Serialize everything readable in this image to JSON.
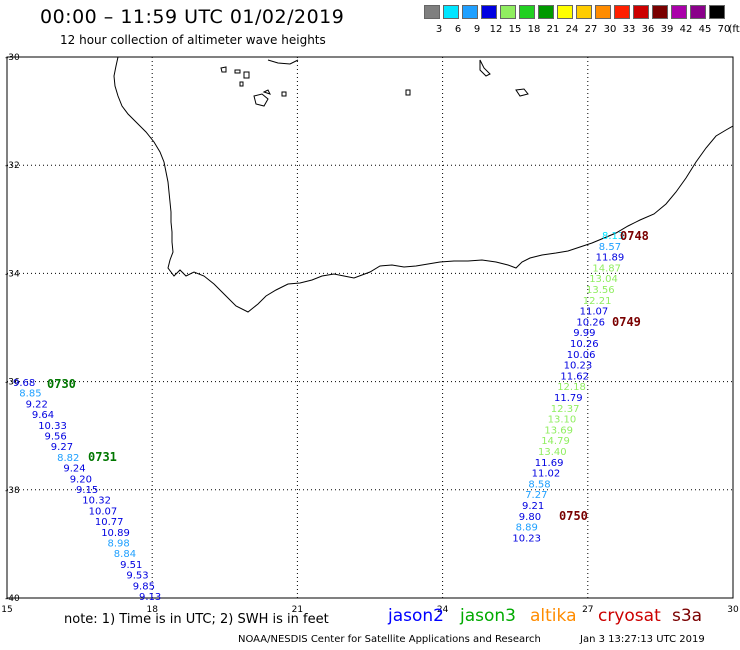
{
  "header": {
    "title": "00:00 – 11:59 UTC 01/02/2019",
    "subtitle": "12 hour collection of altimeter wave heights"
  },
  "legend": {
    "unit": "(ft)",
    "bins": [
      {
        "label": "3",
        "color": "#7f7f7f"
      },
      {
        "label": "6",
        "color": "#00e5ff"
      },
      {
        "label": "9",
        "color": "#1fa0ff"
      },
      {
        "label": "12",
        "color": "#0000e0"
      },
      {
        "label": "15",
        "color": "#90ee60"
      },
      {
        "label": "18",
        "color": "#22d022"
      },
      {
        "label": "21",
        "color": "#009900"
      },
      {
        "label": "24",
        "color": "#ffff00"
      },
      {
        "label": "27",
        "color": "#ffcc00"
      },
      {
        "label": "30",
        "color": "#ff8c00"
      },
      {
        "label": "33",
        "color": "#ff2000"
      },
      {
        "label": "36",
        "color": "#cc0000"
      },
      {
        "label": "39",
        "color": "#7a0000"
      },
      {
        "label": "42",
        "color": "#aa00aa"
      },
      {
        "label": "45",
        "color": "#8a008a"
      },
      {
        "label": "70",
        "color": "#000000"
      }
    ]
  },
  "map": {
    "lon_range": [
      15,
      30
    ],
    "lat_range": [
      -40,
      -30
    ],
    "lon_ticks": [
      "15",
      "18",
      "21",
      "24",
      "27",
      "30"
    ],
    "lat_ticks": [
      "-30",
      "-32",
      "-34",
      "-36",
      "-38",
      "-40"
    ]
  },
  "tracks": [
    {
      "pass_time": "0730",
      "time_color": "#007700"
    },
    {
      "pass_time": "0731",
      "time_color": "#007700"
    },
    {
      "pass_time": "0748",
      "time_color": "#7a0000"
    },
    {
      "pass_time": "0749",
      "time_color": "#7a0000"
    },
    {
      "pass_time": "0750",
      "time_color": "#7a0000"
    }
  ],
  "observations_west": [
    {
      "v": "9.68",
      "c": "#0000e0"
    },
    {
      "v": "8.85",
      "c": "#1fa0ff"
    },
    {
      "v": "9.22",
      "c": "#0000e0"
    },
    {
      "v": "9.64",
      "c": "#0000e0"
    },
    {
      "v": "10.33",
      "c": "#0000e0"
    },
    {
      "v": "9.56",
      "c": "#0000e0"
    },
    {
      "v": "9.27",
      "c": "#0000e0"
    },
    {
      "v": "8.82",
      "c": "#1fa0ff"
    },
    {
      "v": "9.24",
      "c": "#0000e0"
    },
    {
      "v": "9.20",
      "c": "#0000e0"
    },
    {
      "v": "9.15",
      "c": "#0000e0"
    },
    {
      "v": "10.32",
      "c": "#0000e0"
    },
    {
      "v": "10.07",
      "c": "#0000e0"
    },
    {
      "v": "10.77",
      "c": "#0000e0"
    },
    {
      "v": "10.89",
      "c": "#0000e0"
    },
    {
      "v": "8.98",
      "c": "#1fa0ff"
    },
    {
      "v": "8.84",
      "c": "#1fa0ff"
    },
    {
      "v": "9.51",
      "c": "#0000e0"
    },
    {
      "v": "9.53",
      "c": "#0000e0"
    },
    {
      "v": "9.85",
      "c": "#0000e0"
    },
    {
      "v": "9.13",
      "c": "#0000e0"
    }
  ],
  "observations_east": [
    {
      "v": "8.13",
      "c": "#00e5ff"
    },
    {
      "v": "8.57",
      "c": "#1fa0ff"
    },
    {
      "v": "11.89",
      "c": "#0000e0"
    },
    {
      "v": "14.87",
      "c": "#90ee60"
    },
    {
      "v": "13.04",
      "c": "#90ee60"
    },
    {
      "v": "13.56",
      "c": "#90ee60"
    },
    {
      "v": "12.21",
      "c": "#90ee60"
    },
    {
      "v": "11.07",
      "c": "#0000e0"
    },
    {
      "v": "10.26",
      "c": "#0000e0"
    },
    {
      "v": "9.99",
      "c": "#0000e0"
    },
    {
      "v": "10.26",
      "c": "#0000e0"
    },
    {
      "v": "10.06",
      "c": "#0000e0"
    },
    {
      "v": "10.23",
      "c": "#0000e0"
    },
    {
      "v": "11.62",
      "c": "#0000e0"
    },
    {
      "v": "12.18",
      "c": "#90ee60"
    },
    {
      "v": "11.79",
      "c": "#0000e0"
    },
    {
      "v": "12.37",
      "c": "#90ee60"
    },
    {
      "v": "13.10",
      "c": "#90ee60"
    },
    {
      "v": "13.69",
      "c": "#90ee60"
    },
    {
      "v": "14.79",
      "c": "#90ee60"
    },
    {
      "v": "13.40",
      "c": "#90ee60"
    },
    {
      "v": "11.69",
      "c": "#0000e0"
    },
    {
      "v": "11.02",
      "c": "#0000e0"
    },
    {
      "v": "8.58",
      "c": "#1fa0ff"
    },
    {
      "v": "7.27",
      "c": "#1fa0ff"
    },
    {
      "v": "9.21",
      "c": "#0000e0"
    },
    {
      "v": "9.80",
      "c": "#0000e0"
    },
    {
      "v": "8.89",
      "c": "#1fa0ff"
    },
    {
      "v": "10.23",
      "c": "#0000e0"
    }
  ],
  "footer": {
    "note": "note:  1) Time is in UTC; 2) SWH is in feet",
    "satellites": [
      {
        "name": "jason2",
        "color": "#0000ff"
      },
      {
        "name": "jason3",
        "color": "#00aa00"
      },
      {
        "name": "altika",
        "color": "#ff8c00"
      },
      {
        "name": "cryosat",
        "color": "#cc0000"
      },
      {
        "name": "s3a",
        "color": "#7a0000"
      }
    ],
    "credit": "NOAA/NESDIS Center for Satellite Applications and Research",
    "timestamp": "Jan  3 13:27:13 UTC 2019"
  }
}
